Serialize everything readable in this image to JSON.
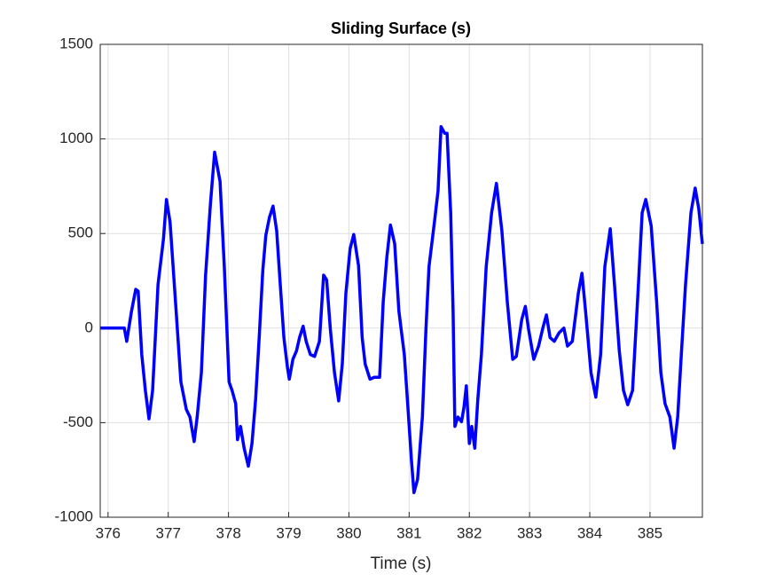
{
  "chart_data": {
    "type": "line",
    "title": "Sliding Surface (s)",
    "x_label": "Time (s)",
    "x": [
      375.87,
      376.27,
      376.31,
      376.39,
      376.46,
      376.5,
      376.56,
      376.62,
      376.68,
      376.74,
      376.83,
      376.92,
      376.97,
      377.03,
      377.12,
      377.21,
      377.3,
      377.36,
      377.43,
      377.48,
      377.55,
      377.62,
      377.7,
      377.77,
      377.86,
      377.93,
      378.01,
      378.06,
      378.12,
      378.15,
      378.2,
      378.26,
      378.33,
      378.39,
      378.45,
      378.51,
      378.57,
      378.62,
      378.68,
      378.74,
      378.8,
      378.86,
      378.92,
      378.98,
      379.01,
      379.07,
      379.13,
      379.18,
      379.24,
      379.29,
      379.36,
      379.43,
      379.51,
      379.58,
      379.63,
      379.69,
      379.76,
      379.83,
      379.89,
      379.95,
      380.02,
      380.08,
      380.16,
      380.22,
      380.27,
      380.35,
      380.42,
      380.51,
      380.57,
      380.63,
      380.69,
      380.76,
      380.83,
      380.92,
      380.98,
      381.04,
      381.08,
      381.14,
      381.22,
      381.28,
      381.33,
      381.42,
      381.48,
      381.53,
      381.59,
      381.63,
      381.69,
      381.73,
      381.76,
      381.81,
      381.87,
      381.91,
      381.95,
      382.0,
      382.04,
      382.09,
      382.14,
      382.2,
      382.28,
      382.37,
      382.45,
      382.54,
      382.63,
      382.72,
      382.78,
      382.87,
      382.93,
      382.98,
      383.07,
      383.15,
      383.22,
      383.28,
      383.34,
      383.41,
      383.49,
      383.57,
      383.63,
      383.71,
      383.81,
      383.87,
      383.93,
      384.02,
      384.1,
      384.18,
      384.25,
      384.34,
      384.41,
      384.49,
      384.56,
      384.63,
      384.71,
      384.8,
      384.87,
      384.93,
      385.02,
      385.11,
      385.18,
      385.25,
      385.33,
      385.4,
      385.46,
      385.52,
      385.59,
      385.68,
      385.75,
      385.81,
      385.87
    ],
    "values": [
      0,
      0,
      -70,
      90,
      205,
      195,
      -140,
      -330,
      -480,
      -330,
      230,
      470,
      680,
      560,
      140,
      -285,
      -430,
      -470,
      -600,
      -470,
      -235,
      280,
      655,
      930,
      775,
      330,
      -285,
      -330,
      -400,
      -590,
      -520,
      -635,
      -730,
      -610,
      -380,
      -50,
      305,
      490,
      585,
      645,
      515,
      230,
      -50,
      -210,
      -270,
      -165,
      -120,
      -50,
      10,
      -70,
      -140,
      -150,
      -70,
      280,
      255,
      0,
      -235,
      -385,
      -190,
      185,
      420,
      495,
      330,
      -50,
      -190,
      -270,
      -260,
      -260,
      140,
      375,
      545,
      445,
      90,
      -140,
      -420,
      -705,
      -870,
      -800,
      -470,
      0,
      325,
      560,
      725,
      1065,
      1030,
      1030,
      610,
      90,
      -520,
      -470,
      -495,
      -420,
      -305,
      -610,
      -520,
      -635,
      -380,
      -140,
      325,
      610,
      765,
      515,
      140,
      -165,
      -150,
      45,
      115,
      0,
      -165,
      -95,
      0,
      70,
      -50,
      -70,
      -25,
      0,
      -95,
      -70,
      185,
      290,
      90,
      -235,
      -365,
      -140,
      325,
      525,
      230,
      -120,
      -330,
      -405,
      -330,
      185,
      610,
      680,
      540,
      140,
      -235,
      -400,
      -470,
      -635,
      -470,
      -140,
      230,
      610,
      740,
      630,
      445
    ],
    "color": "#0000ff",
    "xlim": [
      375.87,
      385.87
    ],
    "xticks": [
      376,
      377,
      378,
      379,
      380,
      381,
      382,
      383,
      384,
      385
    ],
    "ylim": [
      -1000,
      1500
    ],
    "yticks": [
      -1000,
      -500,
      0,
      500,
      1000,
      1500
    ],
    "grid": true
  }
}
